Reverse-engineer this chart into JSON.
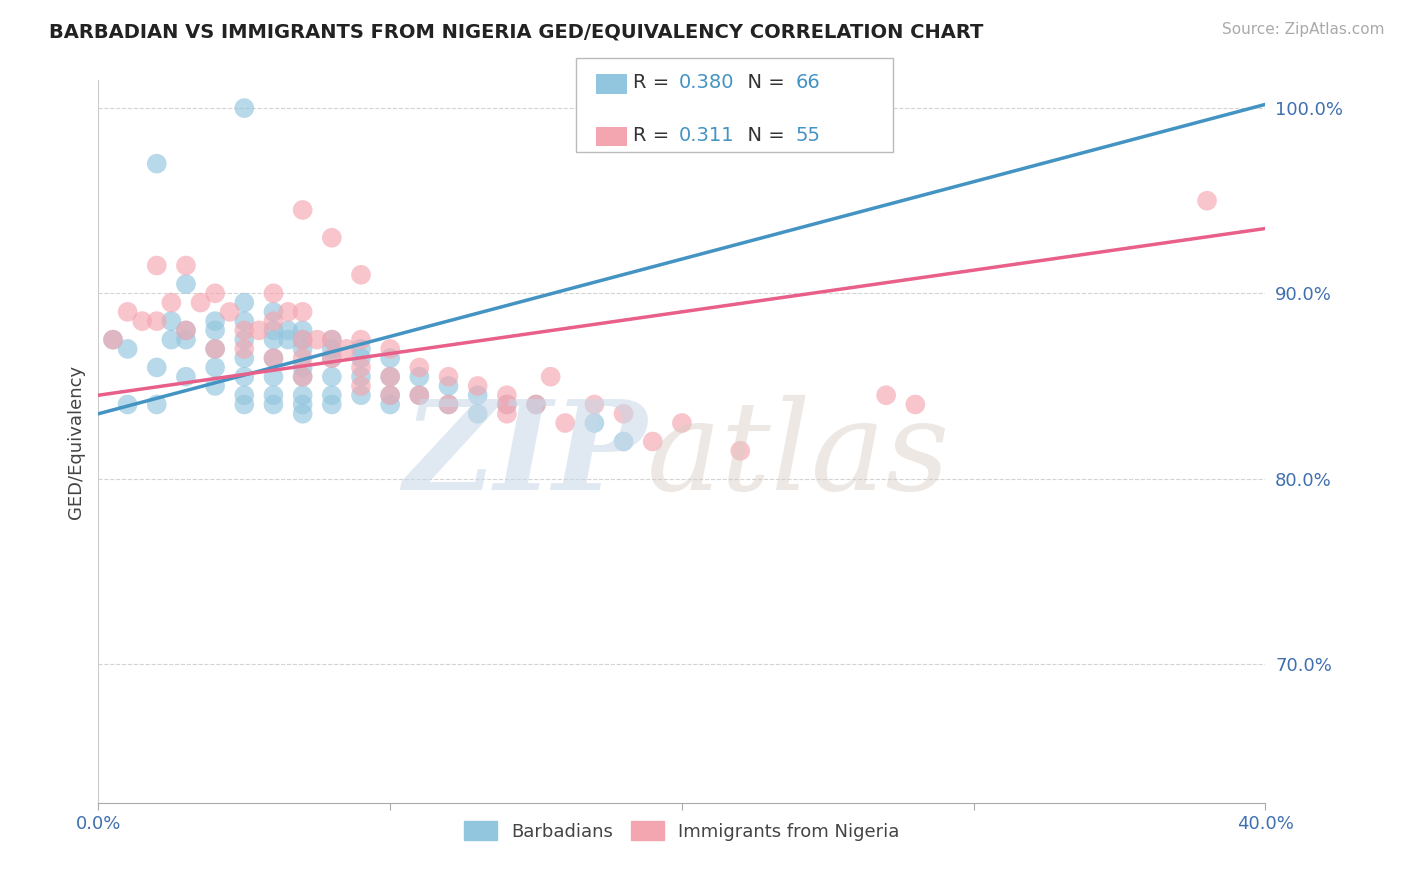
{
  "title": "BARBADIAN VS IMMIGRANTS FROM NIGERIA GED/EQUIVALENCY CORRELATION CHART",
  "source_text": "Source: ZipAtlas.com",
  "ylabel": "GED/Equivalency",
  "x_min": 0.0,
  "x_max": 0.4,
  "y_min": 0.625,
  "y_max": 1.015,
  "x_ticks": [
    0.0,
    0.1,
    0.2,
    0.3,
    0.4
  ],
  "x_tick_labels": [
    "0.0%",
    "",
    "",
    "",
    "40.0%"
  ],
  "y_ticks": [
    0.7,
    0.8,
    0.9,
    1.0
  ],
  "y_tick_labels": [
    "70.0%",
    "80.0%",
    "90.0%",
    "100.0%"
  ],
  "r_barbadian": 0.38,
  "n_barbadian": 66,
  "r_nigeria": 0.311,
  "n_nigeria": 55,
  "blue_color": "#92c5de",
  "pink_color": "#f4a6b0",
  "line_blue": "#4393c3",
  "line_pink": "#e8608a",
  "legend_r_color": "#4393c3",
  "blue_line_x0": 0.0,
  "blue_line_y0": 0.835,
  "blue_line_x1": 0.4,
  "blue_line_y1": 1.002,
  "pink_line_x0": 0.0,
  "pink_line_y0": 0.845,
  "pink_line_x1": 0.4,
  "pink_line_y1": 0.935,
  "barbadians_x": [
    0.005,
    0.01,
    0.01,
    0.02,
    0.02,
    0.02,
    0.025,
    0.025,
    0.03,
    0.03,
    0.03,
    0.03,
    0.04,
    0.04,
    0.04,
    0.04,
    0.04,
    0.05,
    0.05,
    0.05,
    0.05,
    0.05,
    0.05,
    0.05,
    0.06,
    0.06,
    0.06,
    0.06,
    0.06,
    0.06,
    0.06,
    0.065,
    0.07,
    0.07,
    0.07,
    0.07,
    0.07,
    0.07,
    0.07,
    0.07,
    0.08,
    0.08,
    0.08,
    0.08,
    0.08,
    0.08,
    0.09,
    0.09,
    0.09,
    0.09,
    0.1,
    0.1,
    0.1,
    0.1,
    0.11,
    0.11,
    0.12,
    0.12,
    0.13,
    0.13,
    0.14,
    0.15,
    0.17,
    0.18,
    0.05,
    0.065
  ],
  "barbadians_y": [
    0.875,
    0.87,
    0.84,
    0.97,
    0.86,
    0.84,
    0.885,
    0.875,
    0.905,
    0.88,
    0.875,
    0.855,
    0.885,
    0.88,
    0.87,
    0.86,
    0.85,
    0.895,
    0.885,
    0.875,
    0.865,
    0.855,
    0.845,
    0.84,
    0.89,
    0.88,
    0.875,
    0.865,
    0.855,
    0.845,
    0.84,
    0.875,
    0.88,
    0.875,
    0.87,
    0.86,
    0.855,
    0.845,
    0.84,
    0.835,
    0.875,
    0.87,
    0.865,
    0.855,
    0.845,
    0.84,
    0.87,
    0.865,
    0.855,
    0.845,
    0.865,
    0.855,
    0.845,
    0.84,
    0.855,
    0.845,
    0.85,
    0.84,
    0.845,
    0.835,
    0.84,
    0.84,
    0.83,
    0.82,
    1.0,
    0.88
  ],
  "nigeria_x": [
    0.005,
    0.01,
    0.015,
    0.02,
    0.02,
    0.025,
    0.03,
    0.03,
    0.035,
    0.04,
    0.04,
    0.045,
    0.05,
    0.05,
    0.055,
    0.06,
    0.06,
    0.06,
    0.065,
    0.07,
    0.07,
    0.07,
    0.07,
    0.075,
    0.08,
    0.08,
    0.085,
    0.09,
    0.09,
    0.09,
    0.1,
    0.1,
    0.1,
    0.11,
    0.11,
    0.12,
    0.12,
    0.13,
    0.14,
    0.14,
    0.15,
    0.155,
    0.16,
    0.17,
    0.18,
    0.19,
    0.2,
    0.22,
    0.07,
    0.08,
    0.09,
    0.14,
    0.27,
    0.28,
    0.38
  ],
  "nigeria_y": [
    0.875,
    0.89,
    0.885,
    0.915,
    0.885,
    0.895,
    0.915,
    0.88,
    0.895,
    0.9,
    0.87,
    0.89,
    0.88,
    0.87,
    0.88,
    0.9,
    0.885,
    0.865,
    0.89,
    0.89,
    0.875,
    0.865,
    0.855,
    0.875,
    0.875,
    0.865,
    0.87,
    0.875,
    0.86,
    0.85,
    0.87,
    0.855,
    0.845,
    0.86,
    0.845,
    0.855,
    0.84,
    0.85,
    0.845,
    0.835,
    0.84,
    0.855,
    0.83,
    0.84,
    0.835,
    0.82,
    0.83,
    0.815,
    0.945,
    0.93,
    0.91,
    0.84,
    0.845,
    0.84,
    0.95
  ],
  "background_color": "#ffffff",
  "grid_color": "#c8c8c8"
}
